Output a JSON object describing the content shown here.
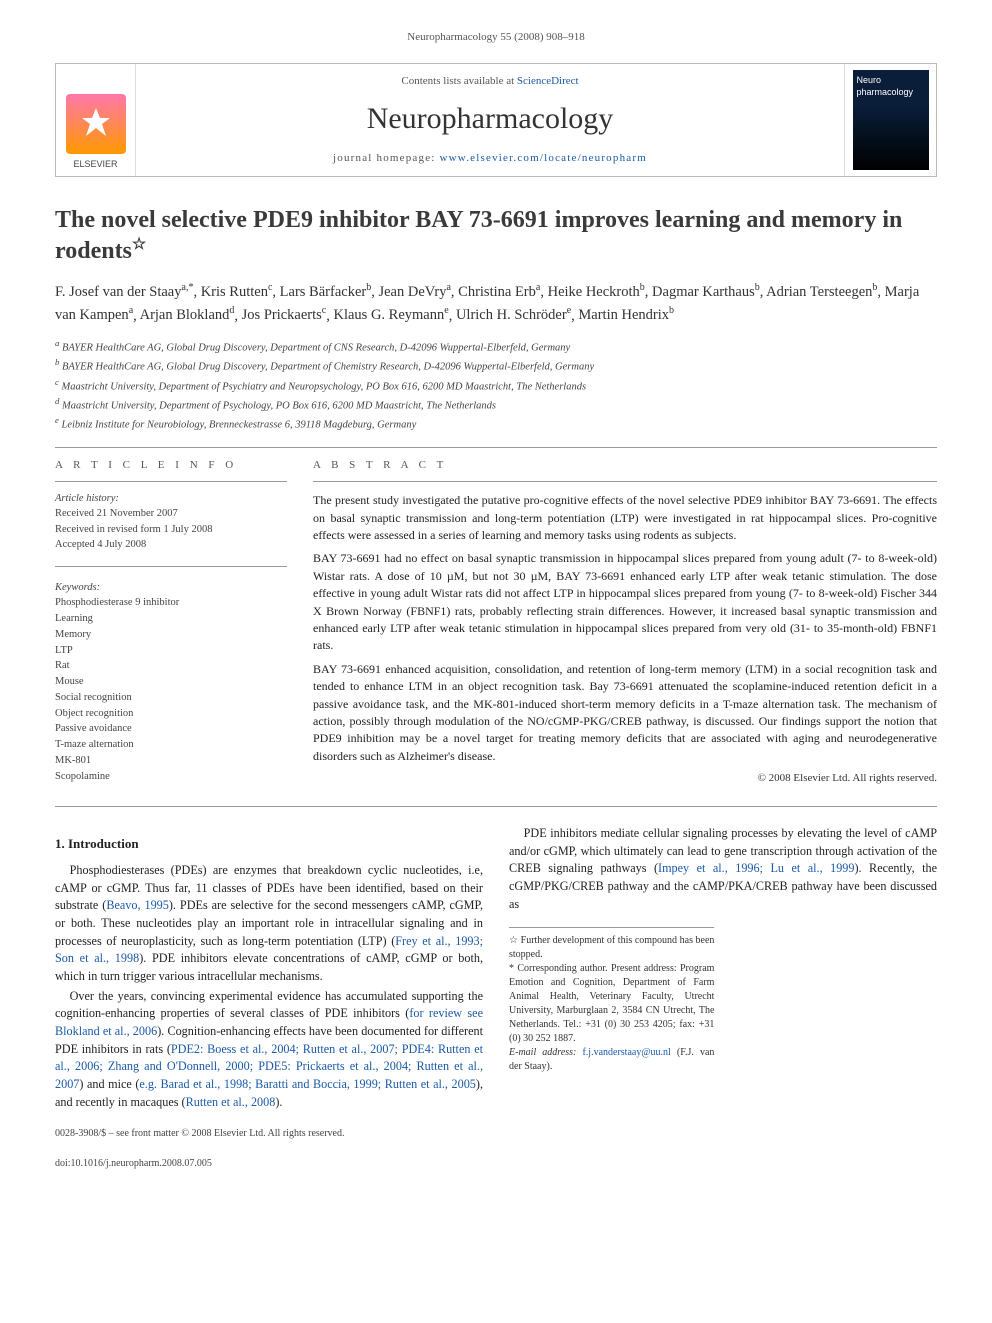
{
  "running_head": "Neuropharmacology 55 (2008) 908–918",
  "masthead": {
    "contents_prefix": "Contents lists available at ",
    "contents_link": "ScienceDirect",
    "journal": "Neuropharmacology",
    "homepage_prefix": "journal homepage: ",
    "homepage_url": "www.elsevier.com/locate/neuropharm",
    "publisher_label": "ELSEVIER",
    "cover_label": "Neuro pharmacology"
  },
  "title": "The novel selective PDE9 inhibitor BAY 73-6691 improves learning and memory in rodents",
  "title_note_marker": "☆",
  "authors_html_parts": [
    {
      "name": "F. Josef van der Staay",
      "sup": "a,*"
    },
    {
      "name": "Kris Rutten",
      "sup": "c"
    },
    {
      "name": "Lars Bärfacker",
      "sup": "b"
    },
    {
      "name": "Jean DeVry",
      "sup": "a"
    },
    {
      "name": "Christina Erb",
      "sup": "a"
    },
    {
      "name": "Heike Heckroth",
      "sup": "b"
    },
    {
      "name": "Dagmar Karthaus",
      "sup": "b"
    },
    {
      "name": "Adrian Tersteegen",
      "sup": "b"
    },
    {
      "name": "Marja van Kampen",
      "sup": "a"
    },
    {
      "name": "Arjan Blokland",
      "sup": "d"
    },
    {
      "name": "Jos Prickaerts",
      "sup": "c"
    },
    {
      "name": "Klaus G. Reymann",
      "sup": "e"
    },
    {
      "name": "Ulrich H. Schröder",
      "sup": "e"
    },
    {
      "name": "Martin Hendrix",
      "sup": "b"
    }
  ],
  "affiliations": [
    {
      "k": "a",
      "t": "BAYER HealthCare AG, Global Drug Discovery, Department of CNS Research, D-42096 Wuppertal-Elberfeld, Germany"
    },
    {
      "k": "b",
      "t": "BAYER HealthCare AG, Global Drug Discovery, Department of Chemistry Research, D-42096 Wuppertal-Elberfeld, Germany"
    },
    {
      "k": "c",
      "t": "Maastricht University, Department of Psychiatry and Neuropsychology, PO Box 616, 6200 MD Maastricht, The Netherlands"
    },
    {
      "k": "d",
      "t": "Maastricht University, Department of Psychology, PO Box 616, 6200 MD Maastricht, The Netherlands"
    },
    {
      "k": "e",
      "t": "Leibniz Institute for Neurobiology, Brenneckestrasse 6, 39118 Magdeburg, Germany"
    }
  ],
  "article_info_label": "A R T I C L E  I N F O",
  "abstract_label": "A B S T R A C T",
  "history": {
    "head": "Article history:",
    "received": "Received 21 November 2007",
    "revised": "Received in revised form 1 July 2008",
    "accepted": "Accepted 4 July 2008"
  },
  "keywords_head": "Keywords:",
  "keywords": [
    "Phosphodiesterase 9 inhibitor",
    "Learning",
    "Memory",
    "LTP",
    "Rat",
    "Mouse",
    "Social recognition",
    "Object recognition",
    "Passive avoidance",
    "T-maze alternation",
    "MK-801",
    "Scopolamine"
  ],
  "abstract_paragraphs": [
    "The present study investigated the putative pro-cognitive effects of the novel selective PDE9 inhibitor BAY 73-6691. The effects on basal synaptic transmission and long-term potentiation (LTP) were investigated in rat hippocampal slices. Pro-cognitive effects were assessed in a series of learning and memory tasks using rodents as subjects.",
    "BAY 73-6691 had no effect on basal synaptic transmission in hippocampal slices prepared from young adult (7- to 8-week-old) Wistar rats. A dose of 10 µM, but not 30 µM, BAY 73-6691 enhanced early LTP after weak tetanic stimulation. The dose effective in young adult Wistar rats did not affect LTP in hippocampal slices prepared from young (7- to 8-week-old) Fischer 344 X Brown Norway (FBNF1) rats, probably reflecting strain differences. However, it increased basal synaptic transmission and enhanced early LTP after weak tetanic stimulation in hippocampal slices prepared from very old (31- to 35-month-old) FBNF1 rats.",
    "BAY 73-6691 enhanced acquisition, consolidation, and retention of long-term memory (LTM) in a social recognition task and tended to enhance LTM in an object recognition task. Bay 73-6691 attenuated the scoplamine-induced retention deficit in a passive avoidance task, and the MK-801-induced short-term memory deficits in a T-maze alternation task. The mechanism of action, possibly through modulation of the NO/cGMP-PKG/CREB pathway, is discussed. Our findings support the notion that PDE9 inhibition may be a novel target for treating memory deficits that are associated with aging and neurodegenerative disorders such as Alzheimer's disease."
  ],
  "copyright": "© 2008 Elsevier Ltd. All rights reserved.",
  "intro_heading": "1. Introduction",
  "intro_paragraphs": [
    "Phosphodiesterases (PDEs) are enzymes that breakdown cyclic nucleotides, i.e, cAMP or cGMP. Thus far, 11 classes of PDEs have been identified, based on their substrate (Beavo, 1995). PDEs are selective for the second messengers cAMP, cGMP, or both. These nucleotides play an important role in intracellular signaling and in processes of neuroplasticity, such as long-term potentiation (LTP) (Frey et al., 1993; Son et al., 1998). PDE inhibitors elevate concentrations of cAMP, cGMP or both, which in turn trigger various intracellular mechanisms.",
    "Over the years, convincing experimental evidence has accumulated supporting the cognition-enhancing properties of several classes of PDE inhibitors (for review see Blokland et al., 2006). Cognition-enhancing effects have been documented for different PDE inhibitors in rats (PDE2: Boess et al., 2004; Rutten et al., 2007; PDE4: Rutten et al., 2006; Zhang and O'Donnell, 2000; PDE5: Prickaerts et al., 2004; Rutten et al., 2007) and mice (e.g. Barad et al., 1998; Baratti and Boccia, 1999; Rutten et al., 2005), and recently in macaques (Rutten et al., 2008).",
    "PDE inhibitors mediate cellular signaling processes by elevating the level of cAMP and/or cGMP, which ultimately can lead to gene transcription through activation of the CREB signaling pathways (Impey et al., 1996; Lu et al., 1999). Recently, the cGMP/PKG/CREB pathway and the cAMP/PKA/CREB pathway have been discussed as"
  ],
  "footnotes": {
    "star": "☆ Further development of this compound has been stopped.",
    "corr": "* Corresponding author. Present address: Program Emotion and Cognition, Department of Farm Animal Health, Veterinary Faculty, Utrecht University, Marburglaan 2, 3584 CN Utrecht, The Netherlands. Tel.: +31 (0) 30 253 4205; fax: +31 (0) 30 252 1887.",
    "email_label": "E-mail address: ",
    "email": "f.j.vanderstaay@uu.nl",
    "email_suffix": " (F.J. van der Staay)."
  },
  "footer": {
    "line1": "0028-3908/$ – see front matter © 2008 Elsevier Ltd. All rights reserved.",
    "line2": "doi:10.1016/j.neuropharm.2008.07.005"
  },
  "colors": {
    "link": "#1a5aa8",
    "rule": "#999999",
    "text": "#222222"
  }
}
